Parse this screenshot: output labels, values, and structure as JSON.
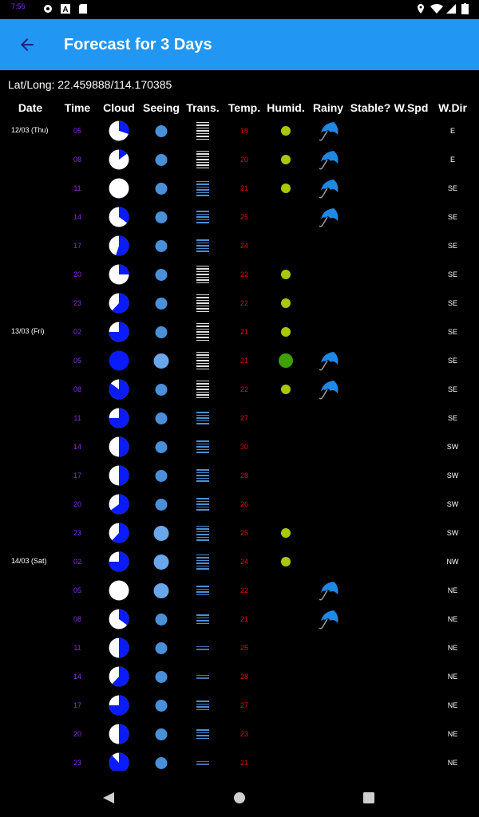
{
  "status_bar": {
    "time": "7:56",
    "icons": [
      "gear-icon",
      "a-icon",
      "sd-card-icon",
      "location-icon",
      "wifi-icon",
      "signal-icon",
      "battery-icon"
    ]
  },
  "app_bar": {
    "title": "Forecast for 3 Days",
    "back_icon": "arrow-back-icon"
  },
  "location": {
    "text": "Lat/Long: 22.459888/114.170385"
  },
  "columns": [
    "Date",
    "Time",
    "Cloud",
    "Seeing",
    "Trans.",
    "Temp.",
    "Humid.",
    "Rainy",
    "Stable?",
    "W.Spd",
    "W.Dir"
  ],
  "legend_colors": {
    "cloud_clear": "#ffffff",
    "cloud_cover": "#0a1cff",
    "seeing": "#4a90d9",
    "humidity": "#a8c800",
    "time": "#8a2be2",
    "temperature": "#e10000"
  },
  "rows": [
    {
      "date": "12/03 (Thu)",
      "time": "05",
      "cloud": 0.3,
      "seeing": "normal",
      "trans": "white",
      "temp": "18",
      "humid": "small",
      "rainy": true,
      "wdir": "E"
    },
    {
      "date": "",
      "time": "08",
      "cloud": 0.15,
      "seeing": "normal",
      "trans": "white",
      "temp": "20",
      "humid": "small",
      "rainy": true,
      "wdir": "E"
    },
    {
      "date": "",
      "time": "11",
      "cloud": 0.0,
      "seeing": "normal",
      "trans": "blue",
      "temp": "21",
      "humid": "small",
      "rainy": true,
      "wdir": "SE"
    },
    {
      "date": "",
      "time": "14",
      "cloud": 0.35,
      "seeing": "normal",
      "trans": "blue-thin",
      "temp": "25",
      "humid": "",
      "rainy": true,
      "wdir": "SE"
    },
    {
      "date": "",
      "time": "17",
      "cloud": 0.55,
      "seeing": "normal",
      "trans": "blue-thin",
      "temp": "24",
      "humid": "",
      "rainy": false,
      "wdir": "SE"
    },
    {
      "date": "",
      "time": "20",
      "cloud": 0.25,
      "seeing": "normal",
      "trans": "white",
      "temp": "22",
      "humid": "small",
      "rainy": false,
      "wdir": "SE"
    },
    {
      "date": "",
      "time": "23",
      "cloud": 0.62,
      "seeing": "normal",
      "trans": "white",
      "temp": "22",
      "humid": "small",
      "rainy": false,
      "wdir": "SE"
    },
    {
      "date": "13/03 (Fri)",
      "time": "02",
      "cloud": 0.75,
      "seeing": "normal",
      "trans": "white",
      "temp": "21",
      "humid": "small",
      "rainy": false,
      "wdir": "SE"
    },
    {
      "date": "",
      "time": "05",
      "cloud": 1.0,
      "seeing": "big",
      "trans": "white",
      "temp": "21",
      "humid": "big",
      "rainy": true,
      "wdir": "SE"
    },
    {
      "date": "",
      "time": "08",
      "cloud": 0.85,
      "seeing": "normal",
      "trans": "white",
      "temp": "22",
      "humid": "small",
      "rainy": true,
      "wdir": "SE"
    },
    {
      "date": "",
      "time": "11",
      "cloud": 0.75,
      "seeing": "normal",
      "trans": "blue-thin",
      "temp": "27",
      "humid": "",
      "rainy": false,
      "wdir": "SE"
    },
    {
      "date": "",
      "time": "14",
      "cloud": 0.5,
      "seeing": "normal",
      "trans": "blue-thin",
      "temp": "30",
      "humid": "",
      "rainy": false,
      "wdir": "SW"
    },
    {
      "date": "",
      "time": "17",
      "cloud": 0.5,
      "seeing": "normal",
      "trans": "blue-thin",
      "temp": "28",
      "humid": "",
      "rainy": false,
      "wdir": "SW"
    },
    {
      "date": "",
      "time": "20",
      "cloud": 0.65,
      "seeing": "normal",
      "trans": "blue-thin",
      "temp": "26",
      "humid": "",
      "rainy": false,
      "wdir": "SW"
    },
    {
      "date": "",
      "time": "23",
      "cloud": 0.62,
      "seeing": "big",
      "trans": "blue",
      "temp": "25",
      "humid": "small",
      "rainy": false,
      "wdir": "SW"
    },
    {
      "date": "14/03 (Sat)",
      "time": "02",
      "cloud": 0.75,
      "seeing": "big",
      "trans": "blue",
      "temp": "24",
      "humid": "small",
      "rainy": false,
      "wdir": "NW"
    },
    {
      "date": "",
      "time": "05",
      "cloud": 0.0,
      "seeing": "big",
      "trans": "blue-sparse",
      "temp": "22",
      "humid": "",
      "rainy": true,
      "wdir": "NE"
    },
    {
      "date": "",
      "time": "08",
      "cloud": 0.35,
      "seeing": "normal",
      "trans": "blue-sparse",
      "temp": "21",
      "humid": "",
      "rainy": true,
      "wdir": "NE"
    },
    {
      "date": "",
      "time": "11",
      "cloud": 0.5,
      "seeing": "normal",
      "trans": "blue-min",
      "temp": "25",
      "humid": "",
      "rainy": false,
      "wdir": "NE"
    },
    {
      "date": "",
      "time": "14",
      "cloud": 0.62,
      "seeing": "normal",
      "trans": "blue-min",
      "temp": "28",
      "humid": "",
      "rainy": false,
      "wdir": "NE"
    },
    {
      "date": "",
      "time": "17",
      "cloud": 0.75,
      "seeing": "normal",
      "trans": "blue-sparse",
      "temp": "27",
      "humid": "",
      "rainy": false,
      "wdir": "NE"
    },
    {
      "date": "",
      "time": "20",
      "cloud": 0.5,
      "seeing": "normal",
      "trans": "blue-sparse",
      "temp": "23",
      "humid": "",
      "rainy": false,
      "wdir": "NE"
    },
    {
      "date": "",
      "time": "23",
      "cloud": 0.88,
      "seeing": "normal",
      "trans": "blue-min",
      "temp": "21",
      "humid": "",
      "rainy": false,
      "wdir": "NE"
    }
  ],
  "nav_bar": {
    "icons": [
      "nav-back-icon",
      "nav-home-icon",
      "nav-recents-icon"
    ]
  }
}
